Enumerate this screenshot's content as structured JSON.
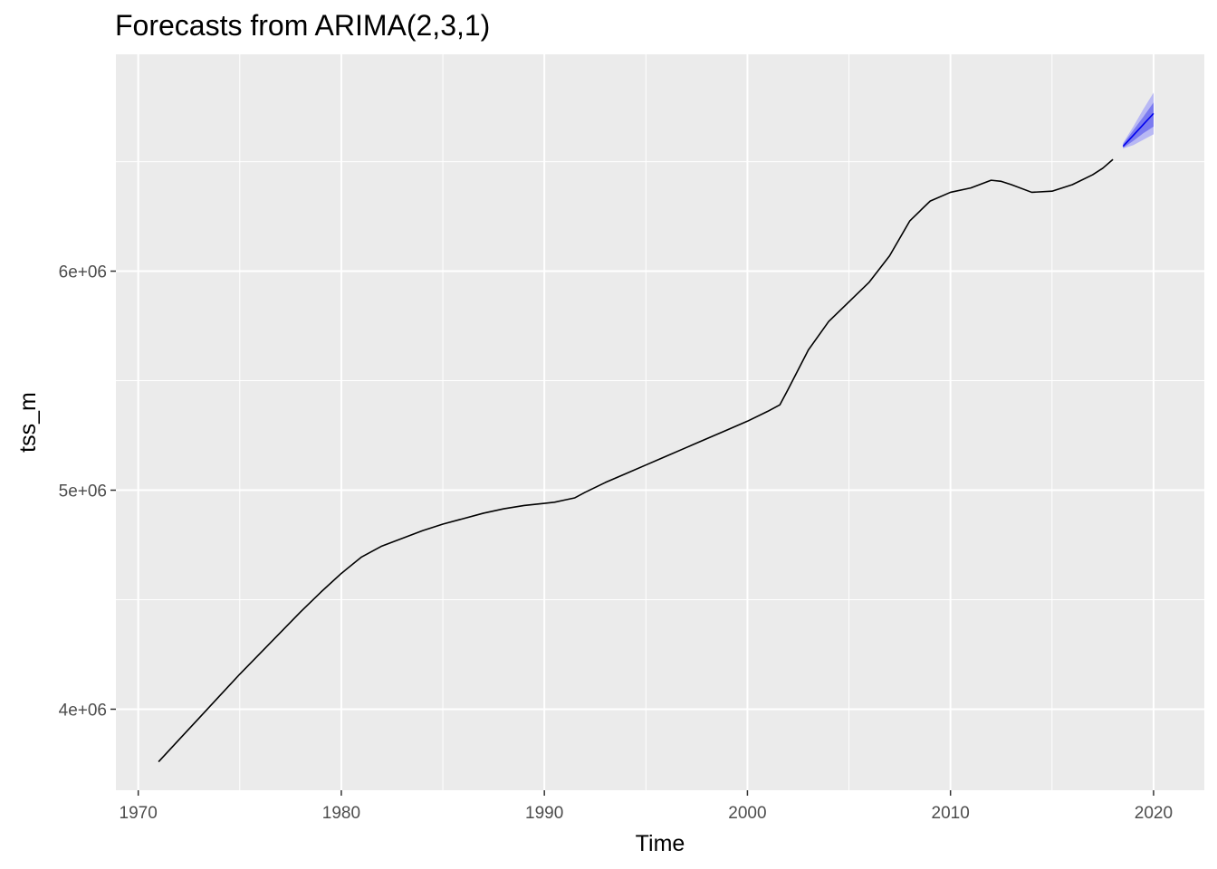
{
  "chart_data": {
    "type": "line",
    "title": "Forecasts from ARIMA(2,3,1)",
    "xlabel": "Time",
    "ylabel": "tss_m",
    "xlim": [
      1968.9,
      2022.5
    ],
    "ylim": [
      3630000,
      6990000
    ],
    "x_ticks": [
      1970,
      1980,
      1990,
      2000,
      2010,
      2020
    ],
    "x_tick_labels": [
      "1970",
      "1980",
      "1990",
      "2000",
      "2010",
      "2020"
    ],
    "y_ticks": [
      4000000,
      5000000,
      6000000
    ],
    "y_tick_labels": [
      "4e+06",
      "5e+06",
      "6e+06"
    ],
    "grid": true,
    "background": "#ebebeb",
    "grid_color": "#ffffff",
    "series": [
      {
        "role": "observed",
        "color": "#000000",
        "x": [
          1971.0,
          1972.0,
          1973.0,
          1974.0,
          1975.0,
          1976.0,
          1977.0,
          1978.0,
          1979.0,
          1980.0,
          1981.0,
          1982.0,
          1983.0,
          1984.0,
          1985.0,
          1986.0,
          1987.0,
          1988.0,
          1989.0,
          1990.0,
          1990.5,
          1991.0,
          1991.5,
          1992.0,
          1993.0,
          1994.0,
          1995.0,
          1996.0,
          1997.0,
          1998.0,
          1999.0,
          2000.0,
          2001.0,
          2001.6,
          2002.0,
          2003.0,
          2004.0,
          2005.0,
          2006.0,
          2007.0,
          2008.0,
          2009.0,
          2010.0,
          2011.0,
          2012.0,
          2012.5,
          2013.0,
          2014.0,
          2015.0,
          2016.0,
          2017.0,
          2017.5,
          2018.0
        ],
        "y": [
          3760000,
          3860000,
          3960000,
          4060000,
          4160000,
          4255000,
          4350000,
          4445000,
          4535000,
          4620000,
          4695000,
          4745000,
          4780000,
          4815000,
          4845000,
          4870000,
          4895000,
          4915000,
          4930000,
          4940000,
          4945000,
          4955000,
          4965000,
          4990000,
          5035000,
          5075000,
          5115000,
          5155000,
          5195000,
          5235000,
          5275000,
          5315000,
          5360000,
          5390000,
          5460000,
          5640000,
          5770000,
          5860000,
          5950000,
          6070000,
          6230000,
          6320000,
          6360000,
          6380000,
          6415000,
          6410000,
          6395000,
          6360000,
          6365000,
          6395000,
          6440000,
          6470000,
          6510000
        ]
      },
      {
        "role": "forecast",
        "color": "#0000ee",
        "x": [
          2018.5,
          2019.0,
          2019.5,
          2020.0
        ],
        "y": [
          6570000,
          6620000,
          6670000,
          6720000
        ]
      }
    ],
    "intervals": [
      {
        "level": "95%",
        "color": "#b8b8f4",
        "x": [
          2018.5,
          2019.0,
          2019.5,
          2020.0
        ],
        "lower": [
          6560000,
          6575000,
          6600000,
          6625000
        ],
        "upper": [
          6585000,
          6660000,
          6740000,
          6815000
        ]
      },
      {
        "level": "80%",
        "color": "#7a7af0",
        "x": [
          2018.5,
          2019.0,
          2019.5,
          2020.0
        ],
        "lower": [
          6563000,
          6595000,
          6630000,
          6660000
        ],
        "upper": [
          6580000,
          6643000,
          6705000,
          6770000
        ]
      }
    ]
  }
}
